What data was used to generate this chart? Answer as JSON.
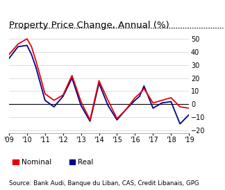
{
  "title": "Property Price Change, Annual (%)",
  "source": "Source: Bank Audi, Banque du Liban, CAS, Credit Libanais, GPG",
  "xlim": [
    2009.0,
    2019.0
  ],
  "ylim": [
    -22,
    55
  ],
  "yticks": [
    -20,
    -10,
    0,
    10,
    20,
    30,
    40,
    50
  ],
  "xtick_labels": [
    "'09",
    "'10",
    "'11",
    "'12",
    "'13",
    "'14",
    "'15",
    "'16",
    "'17",
    "'18",
    "'19"
  ],
  "xtick_positions": [
    2009,
    2010,
    2011,
    2012,
    2013,
    2014,
    2015,
    2016,
    2017,
    2018,
    2019
  ],
  "nominal_x": [
    2009.0,
    2009.5,
    2010.0,
    2010.25,
    2010.5,
    2011.0,
    2011.5,
    2012.0,
    2012.5,
    2013.0,
    2013.5,
    2014.0,
    2014.5,
    2015.0,
    2015.5,
    2016.0,
    2016.25,
    2016.5,
    2017.0,
    2017.5,
    2018.0,
    2018.5,
    2019.0
  ],
  "nominal_y": [
    38,
    46,
    50,
    44,
    33,
    8,
    3,
    7,
    22,
    2,
    -12,
    18,
    3,
    -11,
    -4,
    5,
    8,
    12,
    1,
    3,
    5,
    -2,
    -3
  ],
  "real_x": [
    2009.0,
    2009.5,
    2010.0,
    2010.25,
    2010.5,
    2011.0,
    2011.5,
    2012.0,
    2012.5,
    2013.0,
    2013.5,
    2014.0,
    2014.5,
    2015.0,
    2015.5,
    2016.0,
    2016.25,
    2016.5,
    2017.0,
    2017.5,
    2018.0,
    2018.5,
    2019.0
  ],
  "real_y": [
    35,
    44,
    45,
    38,
    28,
    3,
    -2,
    6,
    20,
    -1,
    -13,
    16,
    -1,
    -12,
    -4,
    3,
    6,
    14,
    -3,
    1,
    2,
    -15,
    -8
  ],
  "nominal_color": "#e8000a",
  "real_color": "#00008b",
  "background_color": "#ffffff",
  "title_fontsize": 9.5,
  "source_fontsize": 6.2,
  "legend_fontsize": 7.5,
  "tick_fontsize": 7.0
}
